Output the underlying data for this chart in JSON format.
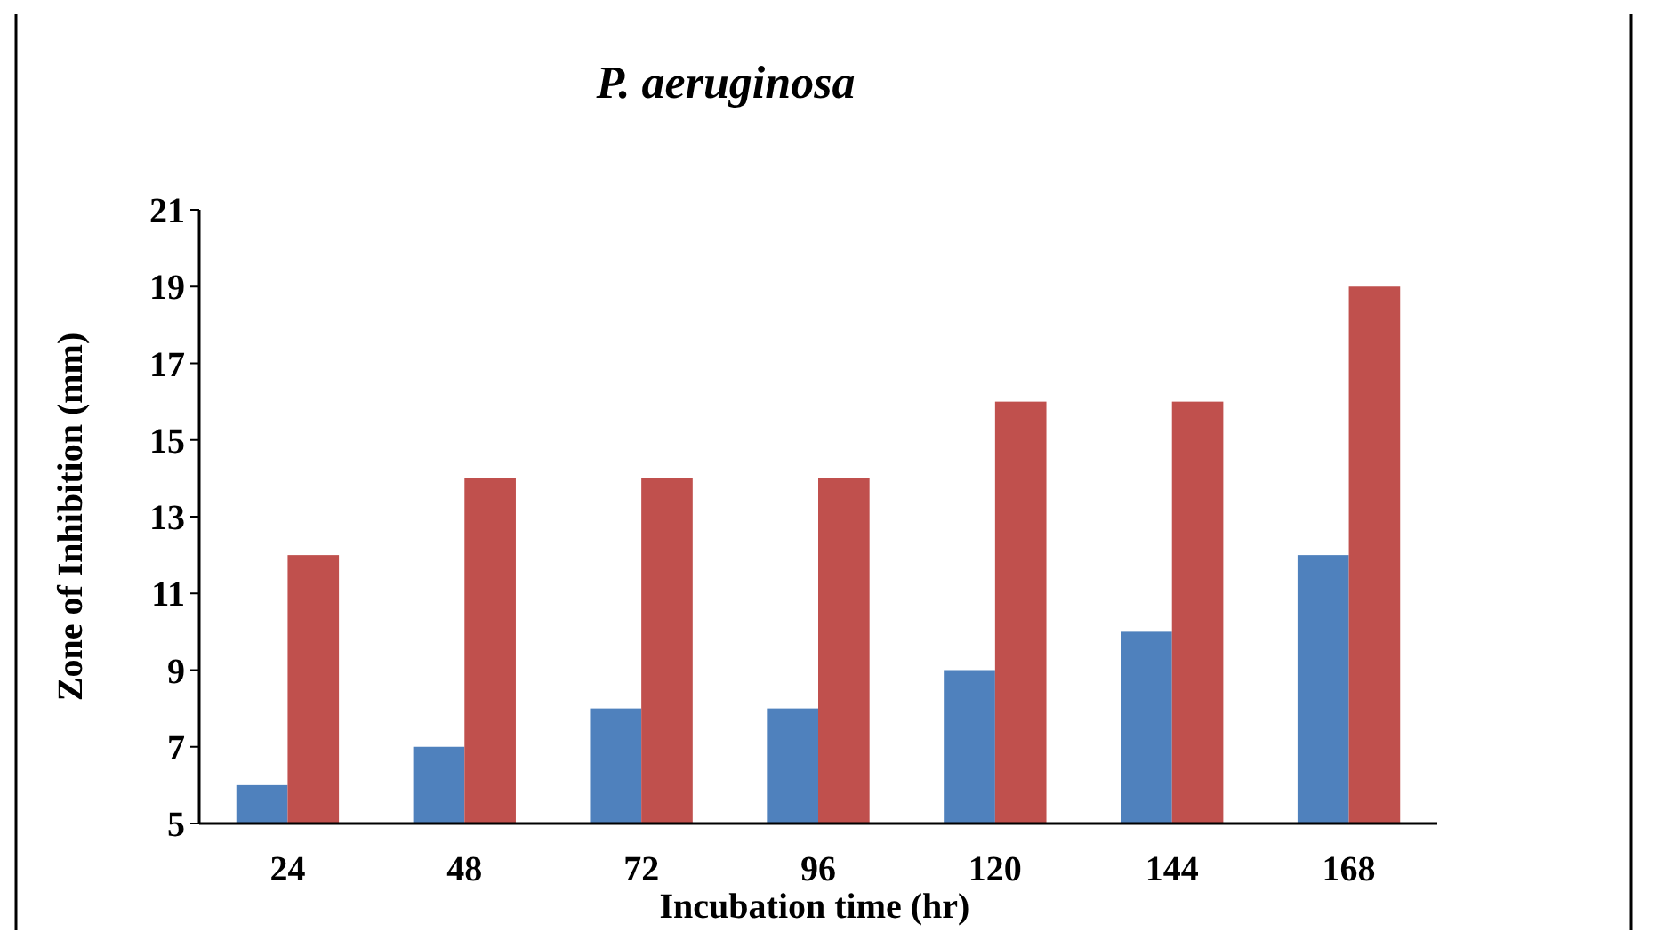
{
  "chart_data": {
    "type": "bar",
    "title": "P. aeruginosa",
    "xlabel": "Incubation time (hr)",
    "ylabel": "Zone of Inhibition (mm)",
    "categories": [
      "24",
      "48",
      "72",
      "96",
      "120",
      "144",
      "168"
    ],
    "series": [
      {
        "color": "#4f81bd",
        "values": [
          6,
          7,
          8,
          8,
          9,
          10,
          12
        ]
      },
      {
        "color": "#c0504d",
        "values": [
          12,
          14,
          14,
          14,
          16,
          16,
          19
        ]
      }
    ],
    "ylim": [
      5,
      21
    ],
    "yticks": [
      5,
      7,
      9,
      11,
      13,
      15,
      17,
      19,
      21
    ],
    "grid": false
  }
}
